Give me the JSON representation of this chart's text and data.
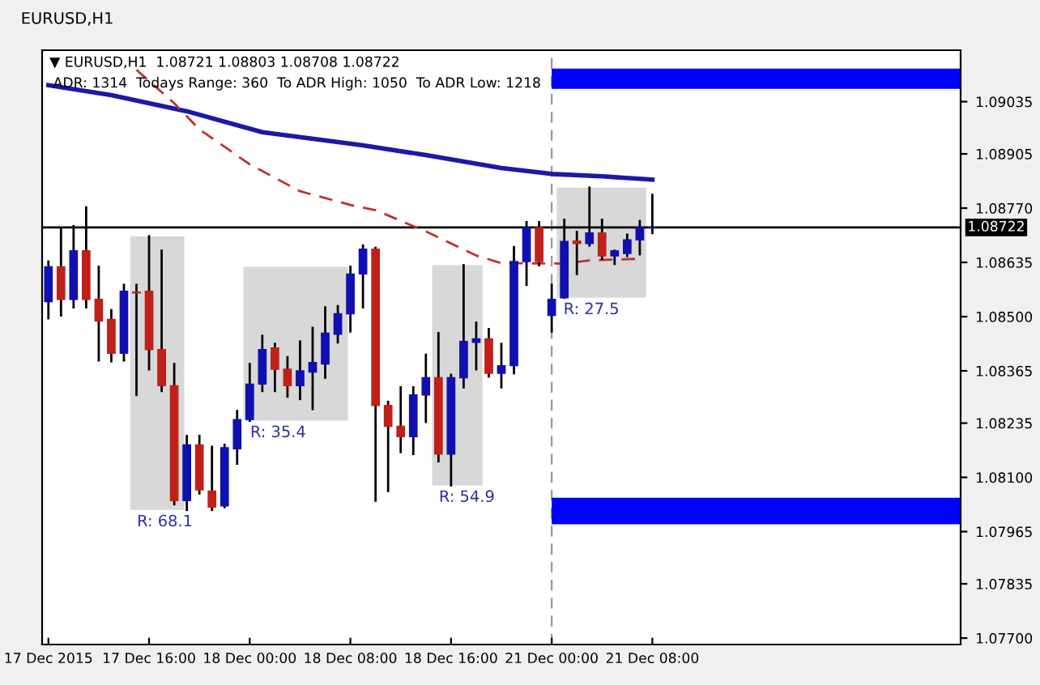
{
  "chart_data": {
    "type": "candlestick",
    "title": "▼ EURUSD,H1  1.08721 1.08803 1.08708 1.08722",
    "subtitle": "ADR: 1314  Todays Range: 360  To ADR High: 1050  To ADR Low: 1218",
    "annotations": [
      "EURUSD,H1",
      "R: 68.1",
      "R: 35.4",
      "R: 54.9",
      "R: 27.5"
    ],
    "categories": [
      "17 Dec 2015",
      null,
      null,
      null,
      null,
      null,
      null,
      null,
      "17 Dec 16:00",
      null,
      null,
      null,
      null,
      null,
      null,
      null,
      "18 Dec 00:00",
      null,
      null,
      null,
      null,
      null,
      null,
      null,
      "18 Dec 08:00",
      null,
      null,
      null,
      null,
      null,
      null,
      null,
      "18 Dec 16:00",
      null,
      null,
      null,
      null,
      null,
      null,
      null,
      "21 Dec 00:00",
      null,
      null,
      null,
      null,
      null,
      null,
      null,
      "21 Dec 08:00",
      null,
      null,
      null,
      null,
      null,
      null,
      null,
      null,
      null,
      null,
      null,
      null,
      null,
      null,
      null,
      null,
      null,
      null,
      null,
      null,
      null,
      null,
      null,
      null
    ],
    "ohlc": [
      [
        1.08537,
        1.08637,
        1.08496,
        1.08624
      ],
      [
        1.08624,
        1.08718,
        1.08503,
        1.08543
      ],
      [
        1.08543,
        1.08725,
        1.08523,
        1.08664
      ],
      [
        1.08664,
        1.08772,
        1.08523,
        1.08543
      ],
      [
        1.08543,
        1.08624,
        1.08391,
        1.08489
      ],
      [
        1.08493,
        1.08516,
        1.08389,
        1.08409
      ],
      [
        1.08409,
        1.08579,
        1.08391,
        1.08563
      ],
      [
        1.08561,
        1.08579,
        1.08305,
        1.08559
      ],
      [
        1.08563,
        1.087,
        1.08369,
        1.08418
      ],
      [
        1.08418,
        1.08664,
        1.08315,
        1.08328
      ],
      [
        1.08328,
        1.08382,
        1.08033,
        1.08042
      ],
      [
        1.08042,
        1.08203,
        1.08019,
        1.08181
      ],
      [
        1.08181,
        1.08203,
        1.0806,
        1.08069
      ],
      [
        1.08066,
        1.08176,
        1.08019,
        1.08026
      ],
      [
        1.08029,
        1.08181,
        1.08026,
        1.08174
      ],
      [
        1.08171,
        1.08265,
        1.08134,
        1.08244
      ],
      [
        1.08244,
        1.08382,
        1.08241,
        1.08332
      ],
      [
        1.08332,
        1.08452,
        1.08315,
        1.08418
      ],
      [
        1.08422,
        1.08432,
        1.08315,
        1.08369
      ],
      [
        1.08369,
        1.08399,
        1.08301,
        1.08328
      ],
      [
        1.08328,
        1.08438,
        1.08295,
        1.08365
      ],
      [
        1.08362,
        1.08472,
        1.0827,
        1.08386
      ],
      [
        1.08382,
        1.08523,
        1.08348,
        1.08459
      ],
      [
        1.08456,
        1.08526,
        1.08436,
        1.08507
      ],
      [
        1.08507,
        1.08624,
        1.08463,
        1.08606
      ],
      [
        1.08606,
        1.08677,
        1.08523,
        1.08668
      ],
      [
        1.08668,
        1.08671,
        1.08042,
        1.08279
      ],
      [
        1.08279,
        1.08288,
        1.08066,
        1.08227
      ],
      [
        1.08227,
        1.08324,
        1.08163,
        1.08201
      ],
      [
        1.08201,
        1.08324,
        1.08158,
        1.08305
      ],
      [
        1.08305,
        1.08405,
        1.08238,
        1.08348
      ],
      [
        1.08348,
        1.08459,
        1.0814,
        1.08158
      ],
      [
        1.08158,
        1.08355,
        1.0808,
        1.08348
      ],
      [
        1.08348,
        1.08628,
        1.08324,
        1.08438
      ],
      [
        1.08436,
        1.08485,
        1.08369,
        1.08445
      ],
      [
        1.08445,
        1.08469,
        1.08351,
        1.08359
      ],
      [
        1.08359,
        1.08432,
        1.08324,
        1.08378
      ],
      [
        1.08378,
        1.08673,
        1.08359,
        1.08637
      ],
      [
        1.08637,
        1.08735,
        1.08579,
        1.08722
      ],
      [
        1.08722,
        1.08735,
        1.08628,
        1.08637
      ],
      [
        1.08503,
        1.08579,
        1.08463,
        1.08543
      ],
      [
        1.08547,
        1.08741,
        1.08547,
        1.08687
      ],
      [
        1.08688,
        1.08711,
        1.08606,
        1.08682
      ],
      [
        1.08682,
        1.08821,
        1.08677,
        1.08708
      ],
      [
        1.08708,
        1.08741,
        1.08644,
        1.08651
      ],
      [
        1.08651,
        1.08664,
        1.08631,
        1.08664
      ],
      [
        1.08657,
        1.08704,
        1.08651,
        1.08691
      ],
      [
        1.08691,
        1.08738,
        1.08655,
        1.08722
      ],
      [
        1.08721,
        1.08803,
        1.08708,
        1.08722
      ],
      null,
      null,
      null,
      null,
      null,
      null,
      null,
      null,
      null,
      null,
      null,
      null,
      null,
      null,
      null,
      null,
      null,
      null,
      null,
      null,
      null,
      null,
      null,
      null
    ],
    "colors": [
      "#1010b0",
      "#c0201a",
      "#1010b0",
      "#c0201a",
      "#c0201a",
      "#c0201a",
      "#1010b0",
      "#c0201a",
      "#c0201a",
      "#c0201a",
      "#c0201a",
      "#1010b0",
      "#c0201a",
      "#c0201a",
      "#1010b0",
      "#1010b0",
      "#1010b0",
      "#1010b0",
      "#c0201a",
      "#c0201a",
      "#1010b0",
      "#1010b0",
      "#1010b0",
      "#1010b0",
      "#1010b0",
      "#1010b0",
      "#c0201a",
      "#c0201a",
      "#c0201a",
      "#1010b0",
      "#1010b0",
      "#c0201a",
      "#1010b0",
      "#1010b0",
      "#1010b0",
      "#c0201a",
      "#1010b0",
      "#1010b0",
      "#1010b0",
      "#c0201a",
      "#1010b0",
      "#1010b0",
      "#c0201a",
      "#1010b0",
      "#c0201a",
      "#1010b0",
      "#1010b0",
      "#1010b0",
      "#1010b0",
      null,
      null,
      null,
      null,
      null,
      null,
      null,
      null,
      null,
      null,
      null,
      null,
      null,
      null,
      null,
      null,
      null,
      null,
      null,
      null,
      null,
      null,
      null,
      null
    ],
    "series": [
      {
        "type": "line",
        "color": "#1a1aa6",
        "line_style": "solid",
        "values": [
          1.09076,
          null,
          null,
          null,
          null,
          1.09051,
          null,
          null,
          null,
          null,
          null,
          1.09011,
          null,
          null,
          null,
          null,
          null,
          1.08959,
          null,
          null,
          null,
          null,
          null,
          null,
          null,
          1.08926,
          null,
          null,
          null,
          null,
          1.08902,
          null,
          null,
          null,
          null,
          null,
          1.0887,
          null,
          null,
          null,
          1.08855,
          null,
          null,
          null,
          1.08849,
          null,
          null,
          null,
          1.08841,
          null,
          null,
          null,
          null,
          null,
          null,
          null,
          null,
          null,
          null,
          null,
          null,
          null,
          null,
          null,
          null,
          null,
          null,
          null,
          null,
          null,
          null,
          null,
          null
        ]
      },
      {
        "type": "line",
        "color": "#c03030",
        "line_style": "dashed",
        "values": [
          null,
          null,
          null,
          null,
          null,
          null,
          null,
          1.09114,
          null,
          null,
          1.09031,
          null,
          1.08966,
          null,
          null,
          null,
          1.08879,
          null,
          null,
          null,
          1.08812,
          null,
          null,
          null,
          1.08778,
          null,
          1.08765,
          null,
          null,
          null,
          1.08712,
          null,
          null,
          null,
          1.08652,
          null,
          1.08633,
          null,
          null,
          null,
          null,
          1.08632,
          null,
          1.0864,
          null,
          null,
          null,
          1.08644,
          null,
          null,
          null,
          null,
          null,
          null,
          null,
          null,
          null,
          null,
          null,
          null,
          null,
          null,
          null,
          null,
          null,
          null,
          null,
          null,
          null,
          null,
          null,
          null,
          null
        ]
      }
    ],
    "bands": [
      {
        "axis": "y",
        "from": 1.09067,
        "to": 1.09117,
        "color": "#0000ff"
      },
      {
        "axis": "y",
        "from": 1.07983,
        "to": 1.08049,
        "color": "#0000ff"
      }
    ],
    "ref_lines": [
      {
        "axis": "y",
        "value": 1.08722,
        "label": "1.08722",
        "color": "#000000",
        "line_style": "solid"
      },
      {
        "axis": "x",
        "value": "21 Dec 00:00",
        "color": "#999999",
        "line_style": "dashed"
      }
    ],
    "ylim": [
      1.07684,
      1.09163
    ],
    "yticks": [
      {
        "value": 1.09035,
        "label": "1.09035"
      },
      {
        "value": 1.08905,
        "label": "1.08905"
      },
      {
        "value": 1.0877,
        "label": "1.08770"
      },
      {
        "value": 1.08635,
        "label": "1.08635"
      },
      {
        "value": 1.085,
        "label": "1.08500"
      },
      {
        "value": 1.08365,
        "label": "1.08365"
      },
      {
        "value": 1.08235,
        "label": "1.08235"
      },
      {
        "value": 1.081,
        "label": "1.08100"
      },
      {
        "value": 1.07965,
        "label": "1.07965"
      },
      {
        "value": 1.07835,
        "label": "1.07835"
      },
      {
        "value": 1.077,
        "label": "1.07700"
      }
    ],
    "grid": false,
    "legend": false
  }
}
